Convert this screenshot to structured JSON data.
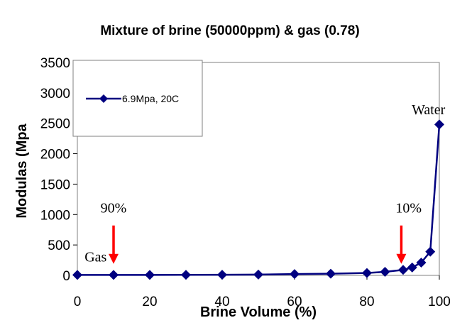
{
  "chart_data": {
    "type": "line",
    "title": "Mixture of brine (50000ppm) & gas (0.78)",
    "xlabel": "Brine Volume (%)",
    "ylabel": "Modulas (Mpa",
    "xlim": [
      0,
      100
    ],
    "ylim": [
      0,
      3500
    ],
    "xticks": [
      "0",
      "20",
      "40",
      "60",
      "80",
      "100"
    ],
    "yticks": [
      "0",
      "500",
      "1000",
      "1500",
      "2000",
      "2500",
      "3000",
      "3500"
    ],
    "grid": false,
    "legend_position": "top-left",
    "series": [
      {
        "name": "6.9Mpa, 20C",
        "color": "#000080",
        "marker": "diamond",
        "x": [
          0,
          10,
          20,
          30,
          40,
          50,
          60,
          70,
          80,
          85,
          90,
          92.5,
          95,
          97.5,
          100
        ],
        "y": [
          8,
          8,
          8,
          9,
          10,
          13,
          22,
          28,
          40,
          58,
          90,
          130,
          210,
          390,
          2480
        ]
      }
    ],
    "annotations": [
      {
        "text": "Water",
        "x": 97,
        "y": 2650
      },
      {
        "text": "Gas",
        "x": 2,
        "y": 230
      },
      {
        "text": "90%",
        "x": 10,
        "y": 1030
      },
      {
        "text": "10%",
        "x": 91.5,
        "y": 1030
      }
    ],
    "arrows": [
      {
        "x": 10,
        "y_from": 820,
        "y_to": 190,
        "color": "#ff0000"
      },
      {
        "x": 89.5,
        "y_from": 820,
        "y_to": 190,
        "color": "#ff0000"
      }
    ],
    "axis_color": "#000000",
    "border_color": "#808080"
  }
}
